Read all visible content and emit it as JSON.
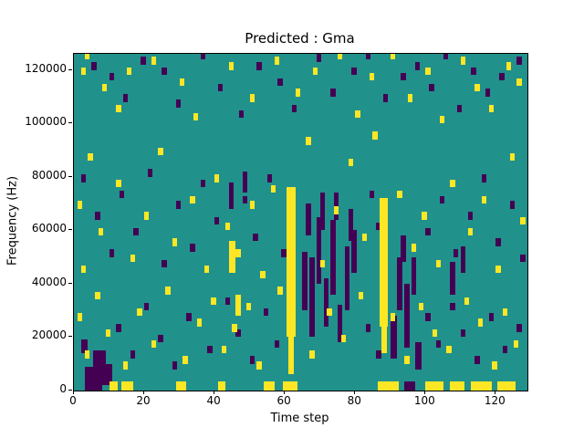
{
  "chart_data": {
    "type": "heatmap",
    "title": "Predicted : Gma",
    "xlabel": "Time step",
    "ylabel": "Frequency (Hz)",
    "xlim": [
      0,
      129
    ],
    "ylim": [
      0,
      126000
    ],
    "xticks": [
      0,
      20,
      40,
      60,
      80,
      100,
      120
    ],
    "yticks": [
      0,
      20000,
      40000,
      60000,
      80000,
      100000,
      120000
    ],
    "colors": {
      "background": "#21918c",
      "high": "#fde725",
      "low": "#440154",
      "spine": "#000000"
    },
    "legend": "none",
    "grid": "off",
    "cells": {
      "note": "sparse cells over teal background; entries are [time, freq] or [time, freq, width, height]",
      "default_w": 1.4,
      "default_h": 2900,
      "yellow": [
        [
          60.5,
          20000,
          2.6,
          56000
        ],
        [
          61,
          6000,
          1.6,
          14000
        ],
        [
          59.5,
          0,
          4,
          3500
        ],
        [
          87,
          24000,
          2.2,
          48000
        ],
        [
          87.5,
          14000,
          1.6,
          10000
        ],
        [
          86.5,
          0,
          3,
          3500
        ],
        [
          10,
          0,
          2.5,
          3500
        ],
        [
          13.5,
          0,
          3.5,
          3500
        ],
        [
          29,
          0,
          3,
          3500
        ],
        [
          41,
          0,
          2,
          3500
        ],
        [
          54,
          0,
          3,
          3500
        ],
        [
          89.5,
          0,
          3,
          3500
        ],
        [
          100,
          0,
          5,
          3500
        ],
        [
          107,
          0,
          4,
          3500
        ],
        [
          113,
          0,
          6,
          3500
        ],
        [
          120.5,
          0,
          5,
          3500
        ],
        [
          44,
          44000,
          2,
          12000
        ],
        [
          46,
          28000,
          1.6,
          8000
        ],
        [
          2,
          118000
        ],
        [
          3,
          124000
        ],
        [
          8,
          112000
        ],
        [
          12,
          104000
        ],
        [
          15,
          118000
        ],
        [
          22,
          122000
        ],
        [
          30,
          114000
        ],
        [
          34,
          101000
        ],
        [
          44,
          120000
        ],
        [
          50,
          108000
        ],
        [
          57,
          122000
        ],
        [
          63,
          110000
        ],
        [
          68,
          118000
        ],
        [
          75,
          124000
        ],
        [
          80,
          102000
        ],
        [
          84,
          116000
        ],
        [
          90,
          124000
        ],
        [
          95,
          108000
        ],
        [
          100,
          118000
        ],
        [
          104,
          100000
        ],
        [
          110,
          122000
        ],
        [
          114,
          112000
        ],
        [
          118,
          104000
        ],
        [
          123,
          120000
        ],
        [
          126,
          114000
        ],
        [
          1,
          68000
        ],
        [
          2,
          44000
        ],
        [
          4,
          86000
        ],
        [
          7,
          58000
        ],
        [
          12,
          76000
        ],
        [
          16,
          48000
        ],
        [
          20,
          64000
        ],
        [
          24,
          88000
        ],
        [
          28,
          54000
        ],
        [
          33,
          70000
        ],
        [
          37,
          44000
        ],
        [
          40,
          78000
        ],
        [
          43,
          60000
        ],
        [
          46,
          50000
        ],
        [
          50,
          68000
        ],
        [
          53,
          42000
        ],
        [
          56,
          74000
        ],
        [
          66,
          92000
        ],
        [
          70,
          46000
        ],
        [
          74,
          66000
        ],
        [
          78,
          84000
        ],
        [
          82,
          56000
        ],
        [
          85,
          94000
        ],
        [
          92,
          72000
        ],
        [
          96,
          52000
        ],
        [
          99,
          64000
        ],
        [
          103,
          46000
        ],
        [
          107,
          76000
        ],
        [
          112,
          58000
        ],
        [
          116,
          70000
        ],
        [
          120,
          44000
        ],
        [
          124,
          86000
        ],
        [
          127,
          62000
        ],
        [
          1,
          26000
        ],
        [
          3,
          12000
        ],
        [
          6,
          34000
        ],
        [
          9,
          20000
        ],
        [
          14,
          8000
        ],
        [
          18,
          28000
        ],
        [
          22,
          16000
        ],
        [
          26,
          36000
        ],
        [
          31,
          10000
        ],
        [
          35,
          24000
        ],
        [
          39,
          32000
        ],
        [
          42,
          14000
        ],
        [
          45,
          22000
        ],
        [
          49,
          30000
        ],
        [
          52,
          8000
        ],
        [
          58,
          36000
        ],
        [
          67,
          12000
        ],
        [
          72,
          28000
        ],
        [
          76,
          18000
        ],
        [
          81,
          34000
        ],
        [
          90,
          26000
        ],
        [
          94,
          10000
        ],
        [
          98,
          30000
        ],
        [
          102,
          20000
        ],
        [
          106,
          14000
        ],
        [
          111,
          32000
        ],
        [
          115,
          24000
        ],
        [
          119,
          8000
        ],
        [
          122,
          28000
        ],
        [
          125,
          16000
        ]
      ],
      "purple": [
        [
          3,
          0,
          5,
          9000
        ],
        [
          5.5,
          9000,
          3.5,
          6000
        ],
        [
          8,
          2000,
          3,
          8000
        ],
        [
          2,
          14000,
          2,
          5000
        ],
        [
          65,
          30000,
          1.4,
          22000
        ],
        [
          67,
          20000,
          1.4,
          30000
        ],
        [
          69,
          40000,
          1.4,
          25000
        ],
        [
          71,
          24000,
          1.4,
          18000
        ],
        [
          73,
          36000,
          1.4,
          28000
        ],
        [
          75,
          18000,
          1.4,
          14000
        ],
        [
          77,
          30000,
          1.4,
          24000
        ],
        [
          79,
          44000,
          1.4,
          16000
        ],
        [
          66,
          58000,
          1.4,
          12000
        ],
        [
          70,
          60000,
          1.4,
          14000
        ],
        [
          74,
          64000,
          1.4,
          10000
        ],
        [
          78,
          56000,
          1.4,
          12000
        ],
        [
          90,
          12000,
          2,
          16000
        ],
        [
          92,
          30000,
          1.4,
          20000
        ],
        [
          94,
          16000,
          1.4,
          24000
        ],
        [
          96,
          36000,
          1.4,
          14000
        ],
        [
          97,
          8000,
          2,
          10000
        ],
        [
          93,
          48000,
          1.4,
          10000
        ],
        [
          94,
          0,
          3,
          3500
        ],
        [
          107,
          36000,
          1.4,
          12000
        ],
        [
          110,
          44000,
          1.4,
          10000
        ],
        [
          44,
          68000,
          1.4,
          10000
        ],
        [
          48,
          74000,
          1.4,
          8000
        ],
        [
          5,
          120000
        ],
        [
          10,
          116000
        ],
        [
          14,
          108000
        ],
        [
          19,
          122000
        ],
        [
          25,
          118000
        ],
        [
          29,
          106000
        ],
        [
          36,
          124000
        ],
        [
          41,
          112000
        ],
        [
          47,
          102000
        ],
        [
          52,
          120000
        ],
        [
          58,
          114000
        ],
        [
          62,
          104000
        ],
        [
          69,
          123000
        ],
        [
          73,
          110000
        ],
        [
          79,
          118000
        ],
        [
          83,
          124000
        ],
        [
          88,
          108000
        ],
        [
          93,
          116000
        ],
        [
          97,
          120000
        ],
        [
          101,
          112000
        ],
        [
          105,
          124000
        ],
        [
          109,
          104000
        ],
        [
          113,
          118000
        ],
        [
          117,
          110000
        ],
        [
          121,
          116000
        ],
        [
          126,
          122000
        ],
        [
          2,
          78000
        ],
        [
          6,
          64000
        ],
        [
          10,
          50000
        ],
        [
          13,
          72000
        ],
        [
          17,
          58000
        ],
        [
          21,
          80000
        ],
        [
          25,
          46000
        ],
        [
          29,
          68000
        ],
        [
          33,
          52000
        ],
        [
          36,
          76000
        ],
        [
          40,
          62000
        ],
        [
          44,
          48000
        ],
        [
          48,
          70000
        ],
        [
          51,
          56000
        ],
        [
          55,
          78000
        ],
        [
          59,
          50000
        ],
        [
          84,
          72000
        ],
        [
          86,
          60000
        ],
        [
          100,
          58000
        ],
        [
          104,
          70000
        ],
        [
          108,
          50000
        ],
        [
          112,
          64000
        ],
        [
          116,
          78000
        ],
        [
          120,
          54000
        ],
        [
          124,
          68000
        ],
        [
          127,
          48000
        ],
        [
          12,
          22000
        ],
        [
          16,
          12000
        ],
        [
          20,
          30000
        ],
        [
          24,
          18000
        ],
        [
          28,
          8000
        ],
        [
          32,
          26000
        ],
        [
          38,
          14000
        ],
        [
          43,
          32000
        ],
        [
          46,
          20000
        ],
        [
          50,
          10000
        ],
        [
          54,
          28000
        ],
        [
          57,
          16000
        ],
        [
          83,
          22000
        ],
        [
          86,
          12000
        ],
        [
          100,
          26000
        ],
        [
          103,
          16000
        ],
        [
          107,
          30000
        ],
        [
          110,
          20000
        ],
        [
          114,
          10000
        ],
        [
          118,
          26000
        ],
        [
          122,
          14000
        ],
        [
          126,
          22000
        ]
      ]
    }
  }
}
